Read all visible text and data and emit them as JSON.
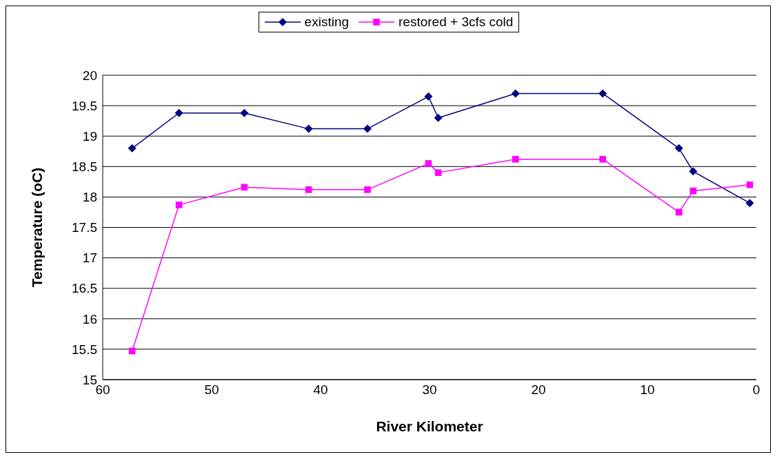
{
  "chart_data": {
    "type": "line",
    "xlabel": "River Kilometer",
    "ylabel": "Temperature (oC)",
    "xlim": [
      60,
      0
    ],
    "xticks": [
      60,
      50,
      40,
      30,
      20,
      10,
      0
    ],
    "ylim": [
      15,
      20
    ],
    "yticks": [
      15,
      15.5,
      16,
      16.5,
      17,
      17.5,
      18,
      18.5,
      19,
      19.5,
      20
    ],
    "grid": "y",
    "legend": "top",
    "x": [
      57.3,
      53.0,
      47.0,
      41.1,
      35.7,
      30.1,
      29.2,
      22.1,
      14.1,
      7.1,
      5.8,
      0.6
    ],
    "series": [
      {
        "name": "existing",
        "color": "#000080",
        "marker": "diamond",
        "values": [
          18.8,
          19.38,
          19.38,
          19.12,
          19.12,
          19.65,
          19.3,
          19.7,
          19.7,
          18.8,
          18.42,
          17.9
        ]
      },
      {
        "name": "restored + 3cfs cold",
        "color": "#ff00ff",
        "marker": "square",
        "values": [
          15.47,
          17.87,
          18.16,
          18.12,
          18.12,
          18.55,
          18.4,
          18.62,
          18.62,
          17.75,
          18.1,
          18.2
        ]
      }
    ]
  }
}
